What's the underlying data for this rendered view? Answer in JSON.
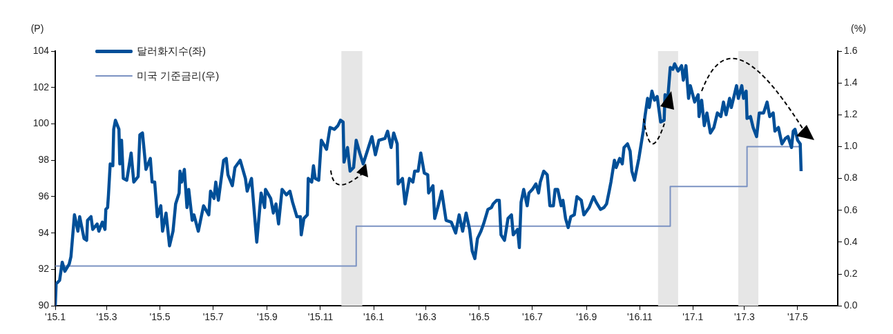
{
  "chart_data": {
    "type": "line",
    "ylabel": "(P)",
    "y2label": "(%)",
    "legend": "top left",
    "grid": false,
    "marker": "none",
    "xlim": [
      "2015-01-01",
      "2017-06-16"
    ],
    "xticks": [
      {
        "value": "2015-01",
        "label": "'15.1"
      },
      {
        "value": "2015-03",
        "label": "'15.3"
      },
      {
        "value": "2015-05",
        "label": "'15.5"
      },
      {
        "value": "2015-07",
        "label": "'15.7"
      },
      {
        "value": "2015-09",
        "label": "'15.9"
      },
      {
        "value": "2015-11",
        "label": "'15.11"
      },
      {
        "value": "2016-01",
        "label": "'16.1"
      },
      {
        "value": "2016-03",
        "label": "'16.3"
      },
      {
        "value": "2016-05",
        "label": "'16.5"
      },
      {
        "value": "2016-07",
        "label": "'16.7"
      },
      {
        "value": "2016-09",
        "label": "'16.9"
      },
      {
        "value": "2016-11",
        "label": "'16.11"
      },
      {
        "value": "2017-01",
        "label": "'17.1"
      },
      {
        "value": "2017-03",
        "label": "'17.3"
      },
      {
        "value": "2017-05",
        "label": "'17.5"
      }
    ],
    "ylim": [
      90,
      104
    ],
    "yticks": [
      90,
      92,
      94,
      96,
      98,
      100,
      102,
      104
    ],
    "y2lim": [
      0,
      1.6
    ],
    "y2ticks": [
      {
        "value": 0,
        "label": "0.0"
      },
      {
        "value": 0.2,
        "label": "0.2"
      },
      {
        "value": 0.4,
        "label": "0.4"
      },
      {
        "value": 0.6,
        "label": "0.6"
      },
      {
        "value": 0.8,
        "label": "0.8"
      },
      {
        "value": 1,
        "label": "1.0"
      },
      {
        "value": 1.2,
        "label": "1.2"
      },
      {
        "value": 1.4,
        "label": "1.4"
      },
      {
        "value": 1.6,
        "label": "1.6"
      }
    ],
    "bands": [
      {
        "axis": "x",
        "from": "2015-11-25",
        "to": "2015-12-19",
        "color": "#e6e6e6"
      },
      {
        "axis": "x",
        "from": "2016-11-22",
        "to": "2016-12-15",
        "color": "#e6e6e6"
      },
      {
        "axis": "x",
        "from": "2017-02-22",
        "to": "2017-03-17",
        "color": "#e6e6e6"
      }
    ],
    "series": [
      {
        "name": "달러화지수(좌)",
        "type": "line",
        "color": "#004f98",
        "x": [
          "2015-01-01",
          "2015-01-02",
          "2015-01-06",
          "2015-01-09",
          "2015-01-12",
          "2015-01-17",
          "2015-01-19",
          "2015-01-23",
          "2015-01-27",
          "2015-01-29",
          "2015-02-03",
          "2015-02-06",
          "2015-02-07",
          "2015-02-11",
          "2015-02-13",
          "2015-02-18",
          "2015-02-20",
          "2015-02-24",
          "2015-02-27",
          "2015-02-28",
          "2015-03-02",
          "2015-03-03",
          "2015-03-05",
          "2015-03-08",
          "2015-03-09",
          "2015-03-11",
          "2015-03-15",
          "2015-03-16",
          "2015-03-18",
          "2015-03-20",
          "2015-03-24",
          "2015-03-29",
          "2015-04-01",
          "2015-04-06",
          "2015-04-08",
          "2015-04-11",
          "2015-04-15",
          "2015-04-20",
          "2015-04-22",
          "2015-04-25",
          "2015-04-28",
          "2015-05-02",
          "2015-05-04",
          "2015-05-08",
          "2015-05-12",
          "2015-05-16",
          "2015-05-19",
          "2015-05-23",
          "2015-05-24",
          "2015-05-26",
          "2015-05-29",
          "2015-06-01",
          "2015-06-03",
          "2015-06-07",
          "2015-06-09",
          "2015-06-14",
          "2015-06-20",
          "2015-06-26",
          "2015-06-28",
          "2015-07-02",
          "2015-07-04",
          "2015-07-07",
          "2015-07-13",
          "2015-07-16",
          "2015-07-18",
          "2015-07-23",
          "2015-07-26",
          "2015-08-01",
          "2015-08-07",
          "2015-08-09",
          "2015-08-14",
          "2015-08-20",
          "2015-08-25",
          "2015-08-29",
          "2015-08-30",
          "2015-09-05",
          "2015-09-08",
          "2015-09-11",
          "2015-09-14",
          "2015-09-18",
          "2015-09-23",
          "2015-09-27",
          "2015-09-30",
          "2015-10-05",
          "2015-10-09",
          "2015-10-10",
          "2015-10-13",
          "2015-10-17",
          "2015-10-18",
          "2015-10-22",
          "2015-10-24",
          "2015-10-26",
          "2015-10-30",
          "2015-11-02",
          "2015-11-08",
          "2015-11-12",
          "2015-11-17",
          "2015-11-21",
          "2015-11-24",
          "2015-11-27",
          "2015-11-28",
          "2015-12-02",
          "2015-12-05",
          "2015-12-09",
          "2015-12-12",
          "2015-12-16",
          "2015-12-20",
          "2015-12-26",
          "2015-12-30",
          "2016-01-03",
          "2016-01-07",
          "2016-01-14",
          "2016-01-17",
          "2016-01-21",
          "2016-01-24",
          "2016-01-28",
          "2016-01-29",
          "2016-02-03",
          "2016-02-06",
          "2016-02-11",
          "2016-02-15",
          "2016-02-17",
          "2016-02-21",
          "2016-02-24",
          "2016-02-28",
          "2016-03-03",
          "2016-03-04",
          "2016-03-09",
          "2016-03-11",
          "2016-03-15",
          "2016-03-19",
          "2016-03-24",
          "2016-03-30",
          "2016-04-04",
          "2016-04-08",
          "2016-04-12",
          "2016-04-16",
          "2016-04-20",
          "2016-04-23",
          "2016-04-26",
          "2016-04-29",
          "2016-05-03",
          "2016-05-06",
          "2016-05-11",
          "2016-05-15",
          "2016-05-17",
          "2016-05-21",
          "2016-05-24",
          "2016-05-26",
          "2016-05-30",
          "2016-06-03",
          "2016-06-07",
          "2016-06-09",
          "2016-06-14",
          "2016-06-16",
          "2016-06-18",
          "2016-06-21",
          "2016-06-25",
          "2016-06-27",
          "2016-07-01",
          "2016-07-05",
          "2016-07-08",
          "2016-07-10",
          "2016-07-14",
          "2016-07-18",
          "2016-07-21",
          "2016-07-25",
          "2016-07-27",
          "2016-07-30",
          "2016-08-03",
          "2016-08-05",
          "2016-08-08",
          "2016-08-11",
          "2016-08-14",
          "2016-08-18",
          "2016-08-21",
          "2016-08-26",
          "2016-08-29",
          "2016-09-04",
          "2016-09-09",
          "2016-09-12",
          "2016-09-17",
          "2016-09-21",
          "2016-09-24",
          "2016-09-27",
          "2016-09-29",
          "2016-10-03",
          "2016-10-05",
          "2016-10-09",
          "2016-10-12",
          "2016-10-14",
          "2016-10-18",
          "2016-10-21",
          "2016-10-23",
          "2016-10-26",
          "2016-10-31",
          "2016-11-05",
          "2016-11-07",
          "2016-11-10",
          "2016-11-12",
          "2016-11-15",
          "2016-11-18",
          "2016-11-21",
          "2016-11-25",
          "2016-11-29",
          "2016-11-30",
          "2016-12-03",
          "2016-12-06",
          "2016-12-09",
          "2016-12-11",
          "2016-12-15",
          "2016-12-19",
          "2016-12-21",
          "2016-12-24",
          "2016-12-27",
          "2016-12-29",
          "2017-01-03",
          "2017-01-07",
          "2017-01-08",
          "2017-01-11",
          "2017-01-14",
          "2017-01-17",
          "2017-01-21",
          "2017-01-25",
          "2017-01-29",
          "2017-02-02",
          "2017-02-05",
          "2017-02-08",
          "2017-02-12",
          "2017-02-14",
          "2017-02-20",
          "2017-02-22",
          "2017-02-26",
          "2017-02-28",
          "2017-03-03",
          "2017-03-04",
          "2017-03-08",
          "2017-03-11",
          "2017-03-15",
          "2017-03-18",
          "2017-03-23",
          "2017-03-27",
          "2017-03-30",
          "2017-04-03",
          "2017-04-05",
          "2017-04-09",
          "2017-04-13",
          "2017-04-17",
          "2017-04-20",
          "2017-04-24",
          "2017-04-26",
          "2017-04-28",
          "2017-05-01",
          "2017-05-04",
          "2017-05-05"
        ],
        "values": [
          90,
          91.2,
          91.4,
          92.4,
          91.9,
          92.3,
          92.7,
          95,
          94.1,
          94.9,
          93.7,
          93.6,
          94.7,
          94.9,
          94.2,
          94.5,
          94.1,
          94.6,
          94.2,
          95.3,
          95.4,
          96.1,
          97.8,
          97.7,
          99.7,
          100.2,
          99.7,
          97.8,
          99.1,
          97,
          96.9,
          98.4,
          96.8,
          97.1,
          99.4,
          99.5,
          97.5,
          98.1,
          96.8,
          96.8,
          94.9,
          95.5,
          94.1,
          95.1,
          93.3,
          94.1,
          95.6,
          96.2,
          97.4,
          96.8,
          97.5,
          95.4,
          96.4,
          94.7,
          95,
          94.1,
          95.5,
          95,
          96.3,
          95.9,
          96.8,
          95.8,
          98,
          98.1,
          97.2,
          96.6,
          97.6,
          98,
          97,
          96.3,
          97,
          93.5,
          96.2,
          95.4,
          96.4,
          95.9,
          95.1,
          95.6,
          94.5,
          96.4,
          96.1,
          96.3,
          95.7,
          94.9,
          94.9,
          93.9,
          94.8,
          95,
          97,
          96.8,
          97.7,
          97,
          96.9,
          99.1,
          98.6,
          99.8,
          99.7,
          99.9,
          100.2,
          100.1,
          97.9,
          98.7,
          97.4,
          97.6,
          99.1,
          98.4,
          97.8,
          98.7,
          99.3,
          98.3,
          99.1,
          99.2,
          99.6,
          98.7,
          99.5,
          98.9,
          96.7,
          97,
          95.6,
          97,
          96.8,
          97.4,
          97.4,
          98.4,
          97.3,
          97.2,
          96.2,
          96.6,
          94.8,
          95.5,
          96.3,
          94.7,
          94.6,
          94,
          95,
          94.1,
          95.1,
          94.2,
          93,
          92.6,
          93.7,
          94.1,
          94.5,
          95.3,
          95.4,
          95.6,
          95.8,
          95.8,
          93.9,
          93.6,
          94.8,
          95,
          93.9,
          94.2,
          93.2,
          95.7,
          96.4,
          95.5,
          96.2,
          96.4,
          96.7,
          96.2,
          96.8,
          97.4,
          97.2,
          95.5,
          95.5,
          96.4,
          96.4,
          95.5,
          95.8,
          94.8,
          94.3,
          94.9,
          95,
          96,
          95.8,
          95,
          95.4,
          96,
          95.7,
          95.3,
          95.4,
          95.6,
          96.3,
          96.8,
          98,
          97.6,
          98.1,
          97.8,
          98.7,
          98.9,
          98.5,
          97.4,
          96.9,
          98.1,
          99.6,
          100.4,
          101.4,
          100.9,
          101.8,
          101.3,
          101.5,
          100.1,
          100.2,
          101.6,
          101.3,
          103.1,
          103,
          103.3,
          102.9,
          103.2,
          102.4,
          103.2,
          101.4,
          102.1,
          101.2,
          101.6,
          100.4,
          101.3,
          99.9,
          100.6,
          99.5,
          99.8,
          100.6,
          100.4,
          101.2,
          100.5,
          101.4,
          100.9,
          102.1,
          101.4,
          102.1,
          101.4,
          101.8,
          100.3,
          100.4,
          99.8,
          99.3,
          100.6,
          100.6,
          101.2,
          100.4,
          100.6,
          99.6,
          99.8,
          98.9,
          99.2,
          99.3,
          98.7,
          99.6,
          99.7,
          99.1,
          98.9,
          97.4
        ]
      },
      {
        "name": "미국 기준금리(우)",
        "type": "step",
        "axis": "y2",
        "color": "#7b92c2",
        "x": [
          "2015-01-01",
          "2015-12-12",
          "2016-12-06",
          "2017-03-04",
          "2017-05-05"
        ],
        "values": [
          0.25,
          0.5,
          0.75,
          1,
          1
        ]
      }
    ]
  }
}
